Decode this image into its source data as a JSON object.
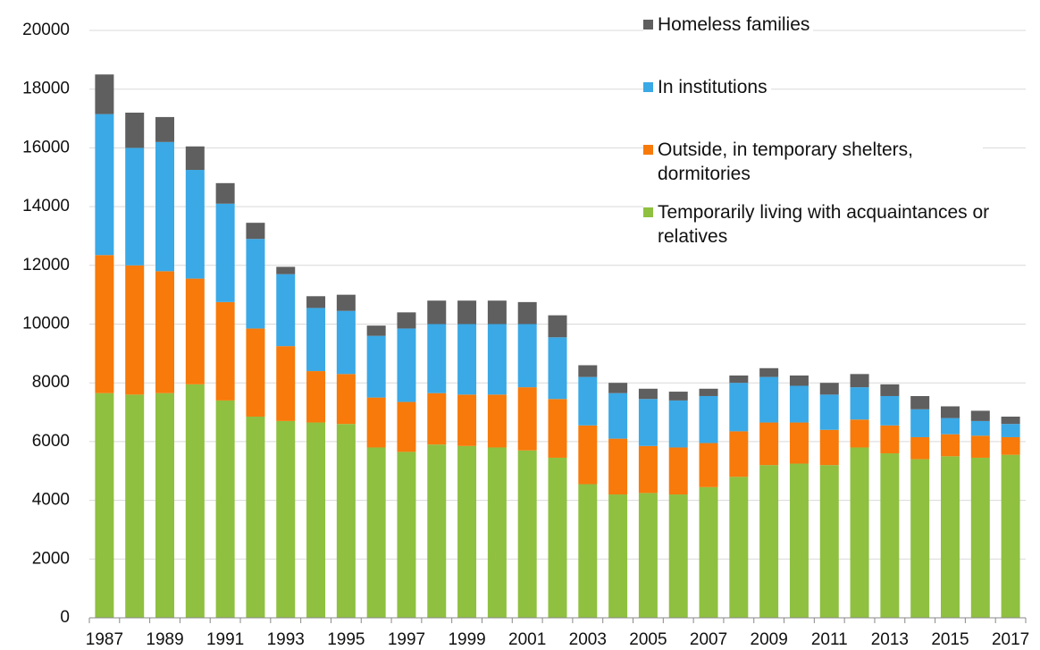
{
  "chart_data": {
    "type": "stacked_bar",
    "categories": [
      "1987",
      null,
      "1989",
      null,
      "1991",
      null,
      "1993",
      null,
      "1995",
      null,
      "1997",
      null,
      "1999",
      null,
      "2001",
      null,
      "2003",
      null,
      "2005",
      null,
      "2007",
      null,
      "2009",
      null,
      "2011",
      null,
      "2013",
      null,
      "2015",
      null,
      "2017"
    ],
    "series": [
      {
        "name": "Temporarily living with acquaintances or relatives",
        "color": "#8fc040",
        "values": [
          7650,
          7600,
          7650,
          7950,
          7400,
          6850,
          6700,
          6650,
          6600,
          5800,
          5650,
          5900,
          5850,
          5800,
          5700,
          5450,
          4550,
          4200,
          4250,
          4200,
          4450,
          4800,
          5200,
          5250,
          5200,
          5800,
          5600,
          5400,
          5500,
          5450,
          5550
        ]
      },
      {
        "name": "Outside, in temporary shelters, dormitories",
        "color": "#f77a0a",
        "values": [
          4700,
          4400,
          4150,
          3600,
          3350,
          3000,
          2550,
          1750,
          1700,
          1700,
          1700,
          1750,
          1750,
          1800,
          2150,
          2000,
          2000,
          1900,
          1600,
          1600,
          1500,
          1550,
          1450,
          1400,
          1200,
          950,
          950,
          750,
          750,
          750,
          600
        ]
      },
      {
        "name": "In institutions",
        "color": "#3aa9e6",
        "values": [
          4800,
          4000,
          4400,
          3700,
          3350,
          3050,
          2450,
          2150,
          2150,
          2100,
          2500,
          2350,
          2400,
          2400,
          2150,
          2100,
          1650,
          1550,
          1600,
          1600,
          1600,
          1650,
          1550,
          1250,
          1200,
          1100,
          1000,
          950,
          550,
          500,
          450
        ]
      },
      {
        "name": "Homeless families",
        "color": "#5f5f5f",
        "values": [
          1350,
          1200,
          850,
          800,
          700,
          550,
          250,
          400,
          550,
          350,
          550,
          800,
          800,
          800,
          750,
          750,
          400,
          350,
          350,
          300,
          250,
          250,
          300,
          350,
          400,
          450,
          400,
          450,
          400,
          350,
          250
        ]
      }
    ],
    "ylim": [
      0,
      20000
    ],
    "yticks": [
      0,
      2000,
      4000,
      6000,
      8000,
      10000,
      12000,
      14000,
      16000,
      18000,
      20000
    ],
    "grid": true
  }
}
